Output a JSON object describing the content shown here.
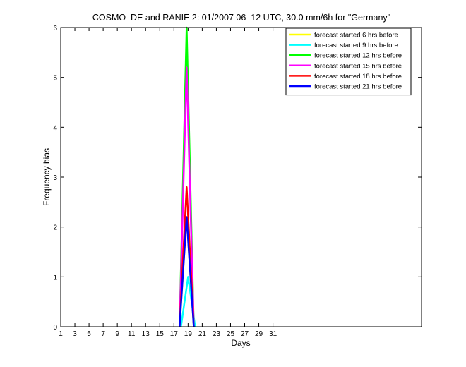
{
  "chart_data": {
    "type": "line",
    "title": "COSMO–DE and RANIE 2: 01/2007 06–12 UTC, 30.0 mm/6h for \"Germany\"",
    "xlabel": "Days",
    "ylabel": "Frequency bias",
    "xlim": [
      1,
      52
    ],
    "ylim": [
      0,
      6
    ],
    "xticks": [
      1,
      3,
      5,
      7,
      9,
      11,
      13,
      15,
      17,
      19,
      21,
      23,
      25,
      27,
      29,
      31
    ],
    "yticks": [
      0,
      1,
      2,
      3,
      4,
      5,
      6
    ],
    "grid": false,
    "legend_position": "top-right",
    "series": [
      {
        "name": "forecast started 6 hrs before",
        "color": "#ffff00",
        "x": [
          17.8,
          18.8,
          19.8
        ],
        "y": [
          0,
          2.2,
          0
        ]
      },
      {
        "name": "forecast started 9 hrs before",
        "color": "#00ffff",
        "x": [
          18.0,
          19.0,
          20.0
        ],
        "y": [
          0,
          1.0,
          0
        ]
      },
      {
        "name": "forecast started 12 hrs before",
        "color": "#00ff00",
        "x": [
          17.8,
          18.8,
          19.8
        ],
        "y": [
          0,
          6.0,
          0
        ]
      },
      {
        "name": "forecast started 15 hrs before",
        "color": "#ff00ff",
        "x": [
          17.8,
          18.8,
          19.8
        ],
        "y": [
          0,
          5.2,
          0
        ]
      },
      {
        "name": "forecast started 18 hrs before",
        "color": "#ff0000",
        "x": [
          17.8,
          18.8,
          19.8
        ],
        "y": [
          0,
          2.8,
          0
        ]
      },
      {
        "name": "forecast started 21 hrs before",
        "color": "#0000ff",
        "x": [
          17.8,
          18.8,
          19.8
        ],
        "y": [
          0,
          2.2,
          0
        ]
      }
    ]
  }
}
